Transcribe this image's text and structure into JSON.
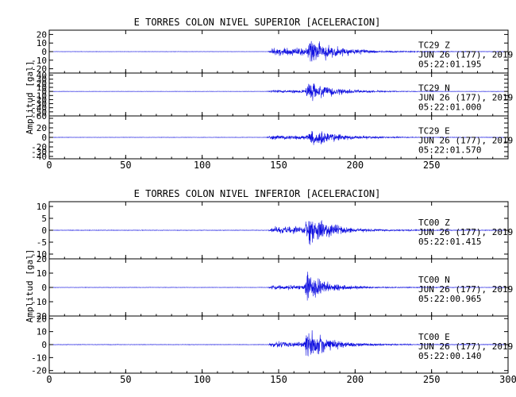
{
  "chart_data": [
    {
      "type": "line",
      "title": "E TORRES COLON NIVEL SUPERIOR [ACELERACION]",
      "ylabel": "Amplitud [gal]",
      "xlim": [
        0,
        300
      ],
      "xticks": [
        0,
        50,
        100,
        150,
        200,
        250
      ],
      "color": "#1010e0",
      "panels": [
        {
          "station": "TC29",
          "component": "Z",
          "date": "JUN 26 (177), 2019",
          "time": "05:22:01.195",
          "ylim": [
            -25,
            25
          ],
          "yticks": [
            20,
            10,
            0,
            -10,
            -20
          ],
          "ytick_labels": [
            "20",
            "10",
            "0",
            "-10",
            "-20"
          ],
          "noise": 0.25,
          "p_onset": 143,
          "p_amp": 7,
          "s_onset": 168,
          "peak_time": 171,
          "peak_amp": 22,
          "decay": 15
        },
        {
          "station": "TC29",
          "component": "N",
          "date": "JUN 26 (177), 2019",
          "time": "05:22:01.000",
          "ylim": [
            -60,
            45
          ],
          "yticks": [
            40,
            30,
            20,
            10,
            0,
            -10,
            -20,
            -30,
            -40,
            -50,
            -60
          ],
          "ytick_labels": [
            "40",
            "30",
            "20",
            "10",
            "0",
            "-10",
            "-20",
            "-30",
            "-40",
            "-50",
            "-60"
          ],
          "noise": 0.5,
          "p_onset": 142,
          "p_amp": 5,
          "s_onset": 167,
          "peak_time": 170,
          "peak_amp": 40,
          "decay": 15
        },
        {
          "station": "TC29",
          "component": "E",
          "date": "JUN 26 (177), 2019",
          "time": "05:22:01.570",
          "ylim": [
            -45,
            45
          ],
          "yticks": [
            40,
            30,
            20,
            10,
            0,
            -10,
            -20,
            -30,
            -40
          ],
          "ytick_labels": [
            "",
            "",
            "20",
            "",
            "0",
            "",
            "-20",
            "-30",
            "-40"
          ],
          "noise": 0.5,
          "p_onset": 142,
          "p_amp": 6,
          "s_onset": 167,
          "peak_time": 172,
          "peak_amp": 30,
          "decay": 16
        }
      ]
    },
    {
      "type": "line",
      "title": "E TORRES COLON NIVEL INFERIOR [ACELERACION]",
      "ylabel": "Amplitud [gal]",
      "xlim": [
        0,
        300
      ],
      "xticks": [
        0,
        50,
        100,
        150,
        200,
        250,
        300
      ],
      "color": "#1010e0",
      "panels": [
        {
          "station": "TC00",
          "component": "Z",
          "date": "JUN 26 (177), 2019",
          "time": "05:22:01.415",
          "ylim": [
            -12,
            12
          ],
          "yticks": [
            10,
            5,
            0,
            -5,
            -10
          ],
          "ytick_labels": [
            "10",
            "5",
            "0",
            "-5",
            "-10"
          ],
          "noise": 0.15,
          "p_onset": 143,
          "p_amp": 2,
          "s_onset": 167,
          "peak_time": 169,
          "peak_amp": 11,
          "decay": 14
        },
        {
          "station": "TC00",
          "component": "N",
          "date": "JUN 26 (177), 2019",
          "time": "05:22:00.965",
          "ylim": [
            -20,
            20
          ],
          "yticks": [
            20,
            10,
            0,
            -10,
            -20
          ],
          "ytick_labels": [
            "20",
            "10",
            "0",
            "-10",
            "-20"
          ],
          "noise": 0.2,
          "p_onset": 143,
          "p_amp": 2.5,
          "s_onset": 166,
          "peak_time": 169,
          "peak_amp": 16,
          "decay": 12
        },
        {
          "station": "TC00",
          "component": "E",
          "date": "JUN 26 (177), 2019",
          "time": "05:22:00.140",
          "ylim": [
            -22,
            22
          ],
          "yticks": [
            20,
            10,
            0,
            -10,
            -20
          ],
          "ytick_labels": [
            "20",
            "10",
            "0",
            "-10",
            "-20"
          ],
          "noise": 0.25,
          "p_onset": 143,
          "p_amp": 3,
          "s_onset": 166,
          "peak_time": 169,
          "peak_amp": 18,
          "decay": 14
        }
      ]
    }
  ]
}
